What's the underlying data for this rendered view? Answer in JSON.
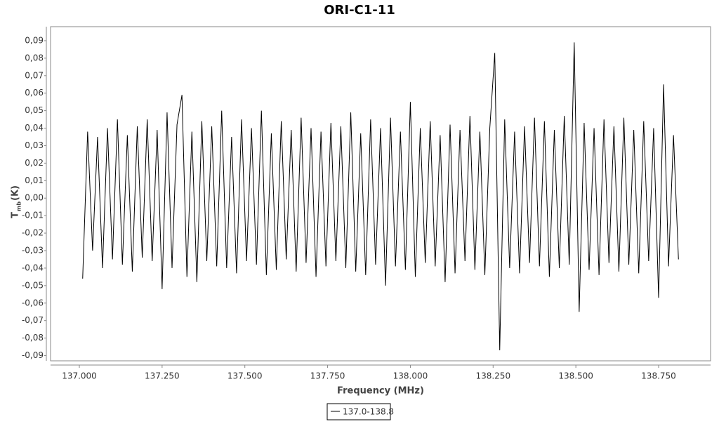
{
  "chart_data": {
    "type": "line",
    "title": "ORI-C1-11",
    "xlabel": "Frequency (MHz)",
    "ylabel": "T",
    "ylabel_sub": "mb",
    "ylabel_unit": "(K)",
    "xlim": [
      136.913,
      138.907
    ],
    "ylim": [
      -0.093,
      0.098
    ],
    "xticks": [
      {
        "value": 137,
        "label": "137.000"
      },
      {
        "value": 137.25,
        "label": "137.250"
      },
      {
        "value": 137.5,
        "label": "137.500"
      },
      {
        "value": 137.75,
        "label": "137.750"
      },
      {
        "value": 138,
        "label": "138.000"
      },
      {
        "value": 138.25,
        "label": "138.250"
      },
      {
        "value": 138.5,
        "label": "138.500"
      },
      {
        "value": 138.75,
        "label": "138.750"
      }
    ],
    "yticks": [
      {
        "value": -0.09,
        "label": "-0,09"
      },
      {
        "value": -0.08,
        "label": "-0,08"
      },
      {
        "value": -0.07,
        "label": "-0,07"
      },
      {
        "value": -0.06,
        "label": "-0,06"
      },
      {
        "value": -0.05,
        "label": "-0,05"
      },
      {
        "value": -0.04,
        "label": "-0,04"
      },
      {
        "value": -0.03,
        "label": "-0,03"
      },
      {
        "value": -0.02,
        "label": "-0,02"
      },
      {
        "value": -0.01,
        "label": "-0,01"
      },
      {
        "value": 0,
        "label": "0,00"
      },
      {
        "value": 0.01,
        "label": "0,01"
      },
      {
        "value": 0.02,
        "label": "0,02"
      },
      {
        "value": 0.03,
        "label": "0,03"
      },
      {
        "value": 0.04,
        "label": "0,04"
      },
      {
        "value": 0.05,
        "label": "0,05"
      },
      {
        "value": 0.06,
        "label": "0,06"
      },
      {
        "value": 0.07,
        "label": "0,07"
      },
      {
        "value": 0.08,
        "label": "0,08"
      },
      {
        "value": 0.09,
        "label": "0,09"
      }
    ],
    "grid": false,
    "x": [
      137.01,
      137.025,
      137.04,
      137.055,
      137.07,
      137.085,
      137.1,
      137.115,
      137.13,
      137.145,
      137.16,
      137.175,
      137.19,
      137.205,
      137.22,
      137.235,
      137.25,
      137.265,
      137.28,
      137.295,
      137.31,
      137.325,
      137.34,
      137.355,
      137.37,
      137.385,
      137.4,
      137.415,
      137.43,
      137.445,
      137.46,
      137.475,
      137.49,
      137.505,
      137.52,
      137.535,
      137.55,
      137.565,
      137.58,
      137.595,
      137.61,
      137.625,
      137.64,
      137.655,
      137.67,
      137.685,
      137.7,
      137.715,
      137.73,
      137.745,
      137.76,
      137.775,
      137.79,
      137.805,
      137.82,
      137.835,
      137.85,
      137.865,
      137.88,
      137.895,
      137.91,
      137.925,
      137.94,
      137.955,
      137.97,
      137.985,
      138.0,
      138.015,
      138.03,
      138.045,
      138.06,
      138.075,
      138.09,
      138.105,
      138.12,
      138.135,
      138.15,
      138.165,
      138.18,
      138.195,
      138.21,
      138.225,
      138.24,
      138.255,
      138.27,
      138.285,
      138.3,
      138.315,
      138.33,
      138.345,
      138.36,
      138.375,
      138.39,
      138.405,
      138.42,
      138.435,
      138.45,
      138.465,
      138.48,
      138.495,
      138.51,
      138.525,
      138.54,
      138.555,
      138.57,
      138.585,
      138.6,
      138.615,
      138.63,
      138.645,
      138.66,
      138.675,
      138.69,
      138.705,
      138.72,
      138.735,
      138.75,
      138.765,
      138.78,
      138.795,
      138.81
    ],
    "series": [
      {
        "name": "137.0-138.8",
        "color": "#000000",
        "values": [
          -0.046,
          0.038,
          -0.03,
          0.035,
          -0.04,
          0.04,
          -0.035,
          0.045,
          -0.038,
          0.036,
          -0.042,
          0.041,
          -0.034,
          0.045,
          -0.036,
          0.039,
          -0.052,
          0.049,
          -0.04,
          0.042,
          0.059,
          -0.045,
          0.038,
          -0.048,
          0.044,
          -0.036,
          0.041,
          -0.039,
          0.05,
          -0.04,
          0.035,
          -0.043,
          0.045,
          -0.036,
          0.04,
          -0.038,
          0.05,
          -0.044,
          0.037,
          -0.041,
          0.044,
          -0.035,
          0.039,
          -0.042,
          0.046,
          -0.037,
          0.04,
          -0.045,
          0.038,
          -0.039,
          0.043,
          -0.036,
          0.041,
          -0.04,
          0.049,
          -0.042,
          0.037,
          -0.044,
          0.045,
          -0.038,
          0.04,
          -0.05,
          0.046,
          -0.039,
          0.038,
          -0.041,
          0.055,
          -0.045,
          0.04,
          -0.037,
          0.044,
          -0.039,
          0.036,
          -0.048,
          0.042,
          -0.043,
          0.039,
          -0.036,
          0.047,
          -0.041,
          0.038,
          -0.044,
          0.04,
          0.083,
          -0.087,
          0.045,
          -0.04,
          0.038,
          -0.043,
          0.041,
          -0.037,
          0.046,
          -0.039,
          0.044,
          -0.045,
          0.039,
          -0.04,
          0.047,
          -0.038,
          0.089,
          -0.065,
          0.043,
          -0.041,
          0.04,
          -0.044,
          0.045,
          -0.037,
          0.041,
          -0.042,
          0.046,
          -0.038,
          0.039,
          -0.043,
          0.044,
          -0.036,
          0.04,
          -0.057,
          0.065,
          -0.039,
          0.036,
          -0.035
        ]
      }
    ]
  }
}
